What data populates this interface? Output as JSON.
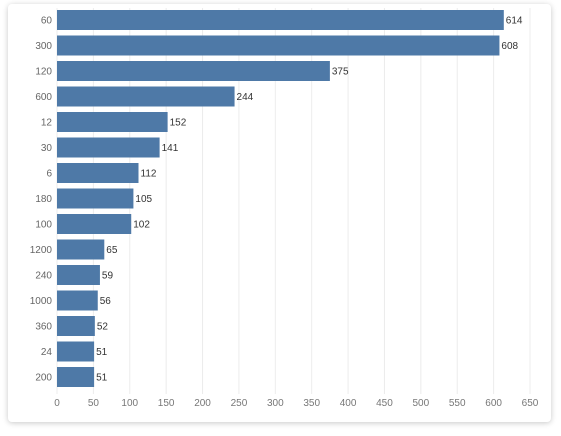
{
  "chart_data": {
    "type": "bar",
    "orientation": "horizontal",
    "categories": [
      "60",
      "300",
      "120",
      "600",
      "12",
      "30",
      "6",
      "180",
      "100",
      "1200",
      "240",
      "1000",
      "360",
      "24",
      "200"
    ],
    "values": [
      614,
      608,
      375,
      244,
      152,
      141,
      112,
      105,
      102,
      65,
      59,
      56,
      52,
      51,
      51
    ],
    "data_labels": [
      "614",
      "608",
      "375",
      "244",
      "152",
      "141",
      "112",
      "105",
      "102",
      "65",
      "59",
      "56",
      "52",
      "51",
      "51"
    ],
    "x_ticks": [
      "0",
      "50",
      "100",
      "150",
      "200",
      "250",
      "300",
      "350",
      "400",
      "450",
      "500",
      "550",
      "600",
      "650"
    ],
    "xlim": [
      0,
      650
    ],
    "grid": true,
    "title": "",
    "xlabel": "",
    "ylabel": "",
    "colors": {
      "bar": "#4e79a7",
      "grid": "#ececec",
      "frame_bg": "#ffffff"
    }
  }
}
